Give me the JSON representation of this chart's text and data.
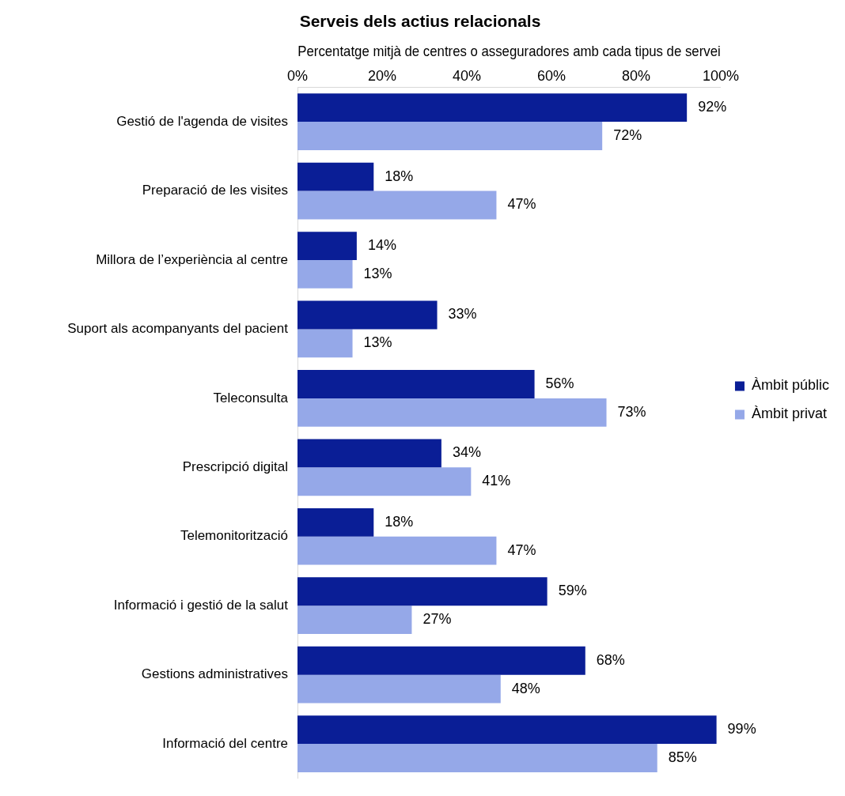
{
  "chart_data": {
    "type": "bar",
    "orientation": "horizontal",
    "title": "Serveis dels actius relacionals",
    "xlabel": "Percentatge mitjà de centres o asseguradores amb cada tipus de servei",
    "categories": [
      "Gestió de l'agenda de visites",
      "Preparació de les visites",
      "Millora de l’experiència al centre",
      "Suport als acompanyants del pacient",
      "Teleconsulta",
      "Prescripció digital",
      "Telemonitorització",
      "Informació i gestió de la salut",
      "Gestions administratives",
      "Informació del centre"
    ],
    "series": [
      {
        "name": "Àmbit públic",
        "color": "#0a1e96",
        "values": [
          92,
          18,
          14,
          33,
          56,
          34,
          18,
          59,
          68,
          99
        ],
        "value_labels": [
          "92%",
          "18%",
          "14%",
          "33%",
          "56%",
          "34%",
          "18%",
          "59%",
          "68%",
          "99%"
        ]
      },
      {
        "name": "Àmbit privat",
        "color": "#95a8e8",
        "values": [
          72,
          47,
          13,
          13,
          73,
          41,
          47,
          27,
          48,
          85
        ],
        "value_labels": [
          "72%",
          "47%",
          "13%",
          "13%",
          "73%",
          "41%",
          "47%",
          "27%",
          "48%",
          "85%"
        ]
      }
    ],
    "xlim": [
      0,
      100
    ],
    "xticks": [
      {
        "value": 0,
        "label": "0%"
      },
      {
        "value": 20,
        "label": "20%"
      },
      {
        "value": 40,
        "label": "40%"
      },
      {
        "value": 60,
        "label": "60%"
      },
      {
        "value": 80,
        "label": "80%"
      },
      {
        "value": 100,
        "label": "100%"
      }
    ],
    "grid": false,
    "legend": "right"
  }
}
